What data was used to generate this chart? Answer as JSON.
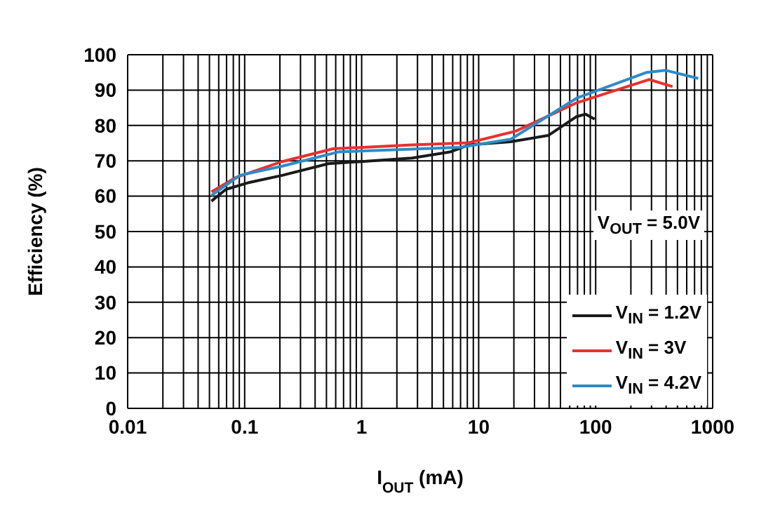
{
  "chart_data": {
    "type": "line",
    "xlabel": "I$_{OUT}$ (mA)",
    "ylabel": "Efficiency (%)",
    "log": "x",
    "grid": true,
    "legend": "bottom right",
    "line_style": "solid",
    "xlim": [
      0.01,
      1000
    ],
    "ylim": [
      0,
      100
    ],
    "xticks": [
      0.01,
      {
        "value": 0.02,
        "label": null
      },
      {
        "value": 0.03,
        "label": null
      },
      {
        "value": 0.04,
        "label": null
      },
      {
        "value": 0.05,
        "label": null
      },
      {
        "value": 0.06,
        "label": null
      },
      {
        "value": 0.07,
        "label": null
      },
      {
        "value": 0.08,
        "label": null
      },
      {
        "value": 0.09,
        "label": null
      },
      0.1,
      {
        "value": 0.2,
        "label": null
      },
      {
        "value": 0.3,
        "label": null
      },
      {
        "value": 0.4,
        "label": null
      },
      {
        "value": 0.5,
        "label": null
      },
      {
        "value": 0.6,
        "label": null
      },
      {
        "value": 0.7,
        "label": null
      },
      {
        "value": 0.8,
        "label": null
      },
      {
        "value": 0.9,
        "label": null
      },
      1,
      {
        "value": 2,
        "label": null
      },
      {
        "value": 3,
        "label": null
      },
      {
        "value": 4,
        "label": null
      },
      {
        "value": 5,
        "label": null
      },
      {
        "value": 6,
        "label": null
      },
      {
        "value": 7,
        "label": null
      },
      {
        "value": 8,
        "label": null
      },
      {
        "value": 9,
        "label": null
      },
      10,
      {
        "value": 20,
        "label": null
      },
      {
        "value": 30,
        "label": null
      },
      {
        "value": 40,
        "label": null
      },
      {
        "value": 50,
        "label": null
      },
      {
        "value": 60,
        "label": null
      },
      {
        "value": 70,
        "label": null
      },
      {
        "value": 80,
        "label": null
      },
      {
        "value": 90,
        "label": null
      },
      100,
      {
        "value": 200,
        "label": null
      },
      {
        "value": 300,
        "label": null
      },
      {
        "value": 400,
        "label": null
      },
      {
        "value": 500,
        "label": null
      },
      {
        "value": 600,
        "label": null
      },
      {
        "value": 700,
        "label": null
      },
      {
        "value": 800,
        "label": null
      },
      {
        "value": 900,
        "label": null
      },
      1000
    ],
    "yticks": [
      0,
      10,
      20,
      30,
      40,
      50,
      60,
      70,
      80,
      90,
      100
    ],
    "annotations": [
      "V$_{OUT}$ = 5.0V"
    ],
    "series": [
      {
        "name": "V$_{IN}$ = 1.2V",
        "color": "#1a1a1a",
        "x": [
          0.052,
          0.069,
          0.11,
          0.21,
          0.52,
          1.0,
          2.7,
          5.7,
          8.2,
          18.8,
          39.5,
          68.7,
          82,
          98
        ],
        "values": [
          58.6,
          61.9,
          63.9,
          65.9,
          69.2,
          69.8,
          70.8,
          72.5,
          74.5,
          75.4,
          77.2,
          82.5,
          83.2,
          81.8
        ]
      },
      {
        "name": "V$_{IN}$ = 3V",
        "color": "#e8312f",
        "x": [
          0.052,
          0.083,
          0.21,
          0.57,
          2.7,
          8.2,
          20.8,
          68.7,
          286,
          454
        ],
        "values": [
          61.2,
          65.2,
          69.8,
          73.4,
          74.5,
          75.1,
          78.4,
          86.4,
          93.0,
          91.0
        ]
      },
      {
        "name": "V$_{IN}$ = 4.2V",
        "color": "#2e8bc9",
        "x": [
          0.052,
          0.091,
          0.21,
          0.63,
          6.9,
          18.8,
          68.7,
          273,
          394,
          753
        ],
        "values": [
          60.2,
          65.9,
          68.5,
          72.5,
          73.8,
          76.1,
          87.7,
          95.0,
          95.6,
          93.3
        ]
      }
    ]
  }
}
